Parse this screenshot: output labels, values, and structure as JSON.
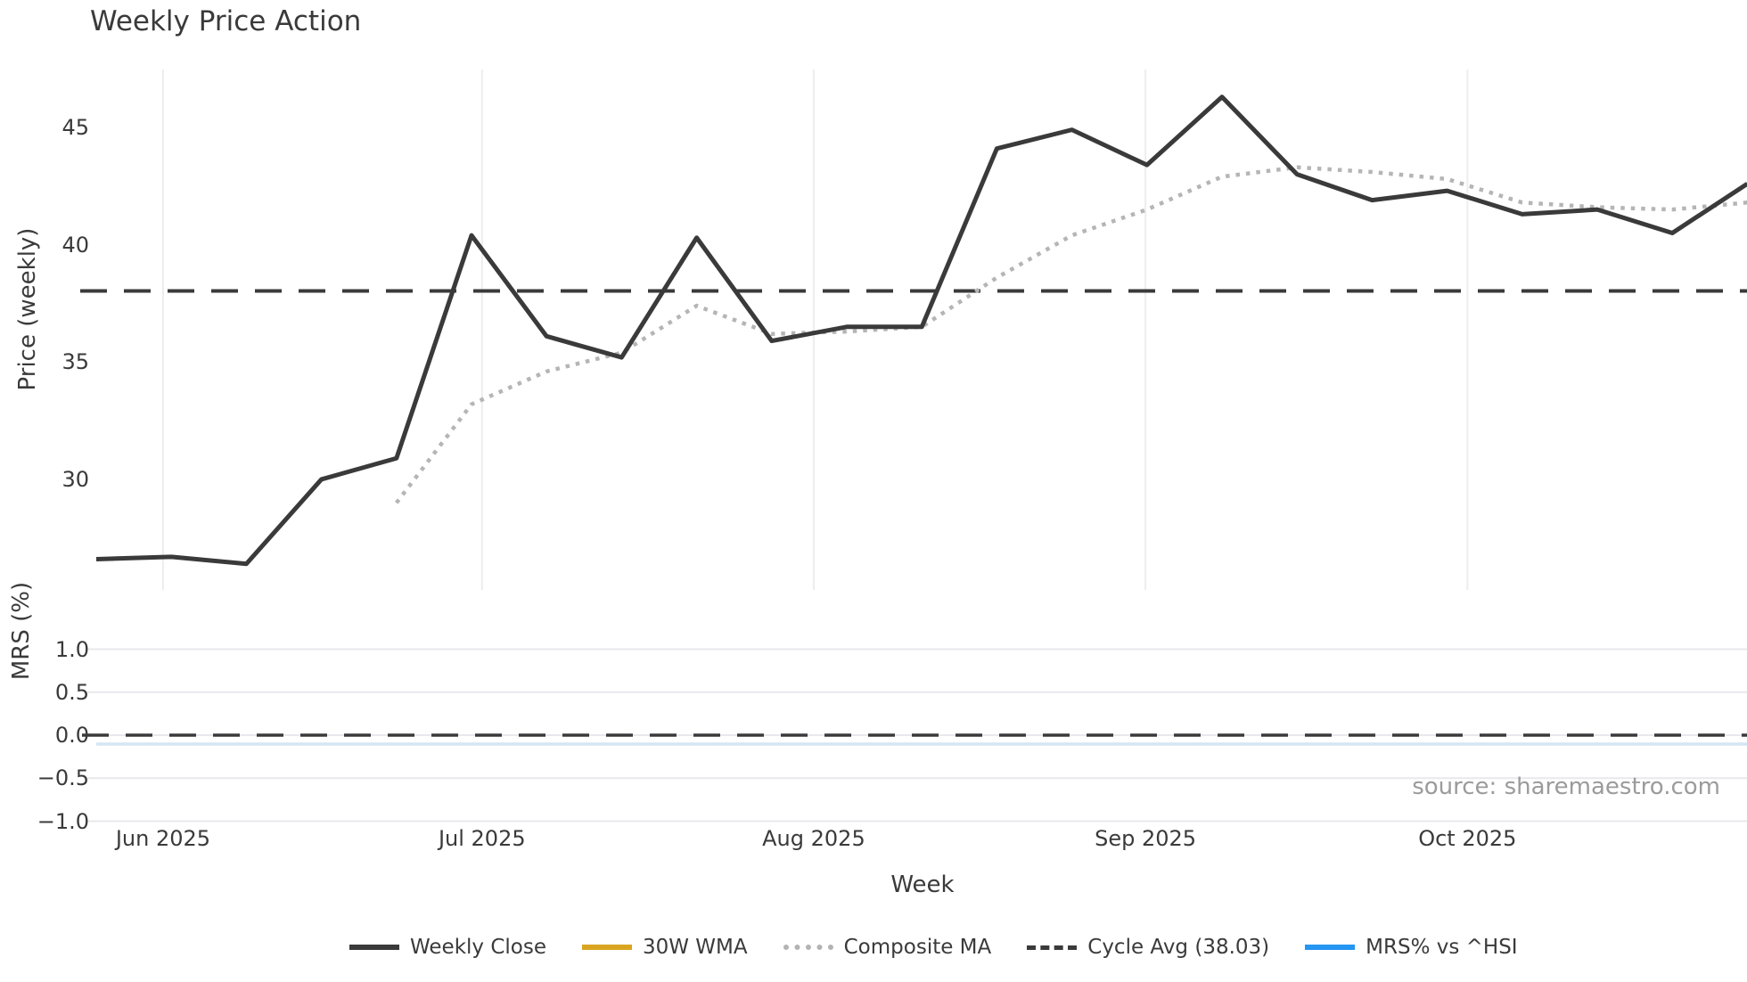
{
  "title": "Weekly Price Action",
  "source_note": "source: sharemaestro.com",
  "colors": {
    "weekly_close": "#3a3a3a",
    "wma_30w": "#d9a521",
    "composite_ma": "#b5b5b5",
    "cycle_avg": "#3a3a3a",
    "mrs_line": "#d6e5f4",
    "grid_vertical": "#ededf2",
    "grid_horizontal": "#e8e8ee",
    "source_text": "#9b9b9b"
  },
  "legend": {
    "items": [
      {
        "label": "Weekly Close",
        "style": "solid",
        "color": "#3a3a3a"
      },
      {
        "label": "30W WMA",
        "style": "solid",
        "color": "#d9a521"
      },
      {
        "label": "Composite MA",
        "style": "dotted",
        "color": "#b3b3b3"
      },
      {
        "label": "Cycle Avg (38.03)",
        "style": "dashed",
        "color": "#3a3a3a"
      },
      {
        "label": "MRS% vs ^HSI",
        "style": "solid",
        "color": "#2596f2"
      }
    ]
  },
  "chart_data": {
    "type": "line",
    "title": "Weekly Price Action",
    "xlabel": "Week",
    "x_ticks": [
      {
        "label": "Jun 2025",
        "week": 0.89
      },
      {
        "label": "Jul 2025",
        "week": 5.14
      },
      {
        "label": "Aug 2025",
        "week": 9.56
      },
      {
        "label": "Sep 2025",
        "week": 13.98
      },
      {
        "label": "Oct 2025",
        "week": 18.27
      }
    ],
    "panels": [
      {
        "name": "price",
        "ylabel": "Price (weekly)",
        "y_ticks": [
          {
            "label": "45",
            "value": 45
          },
          {
            "label": "40",
            "value": 40
          },
          {
            "label": "35",
            "value": 35
          },
          {
            "label": "30",
            "value": 30
          }
        ],
        "ylim": [
          25.9,
          47.4
        ],
        "series": [
          {
            "name": "Weekly Close",
            "start_week": 0,
            "values": [
              26.6,
              26.7,
              26.4,
              30.0,
              30.9,
              40.4,
              36.1,
              35.2,
              40.3,
              35.9,
              36.5,
              36.5,
              44.1,
              44.9,
              43.4,
              46.3,
              43.0,
              41.9,
              42.3,
              41.3,
              41.5,
              40.5,
              42.6
            ]
          },
          {
            "name": "Composite MA",
            "start_week": 4,
            "values": [
              29.0,
              33.2,
              34.6,
              35.4,
              37.4,
              36.2,
              36.3,
              36.5,
              38.6,
              40.4,
              41.5,
              42.9,
              43.3,
              43.1,
              42.8,
              41.8,
              41.6,
              41.5,
              41.8
            ]
          },
          {
            "name": "Cycle Avg",
            "constant": 38.03
          }
        ]
      },
      {
        "name": "mrs",
        "ylabel": "MRS (%)",
        "y_ticks": [
          {
            "label": "1.0",
            "value": 1.0
          },
          {
            "label": "0.5",
            "value": 0.5
          },
          {
            "label": "0.0",
            "value": 0.0
          },
          {
            "label": "−0.5",
            "value": -0.5
          },
          {
            "label": "−1.0",
            "value": -1.0
          }
        ],
        "ylim": [
          -1.2,
          1.2
        ],
        "series": [
          {
            "name": "MRS% vs ^HSI",
            "start_week": 0,
            "values": [
              0,
              0,
              0,
              0,
              0,
              0,
              0,
              0,
              0,
              0,
              0,
              0,
              0,
              0,
              0,
              0,
              0,
              0,
              0,
              0,
              0,
              0,
              0
            ]
          },
          {
            "name": "Zero Line",
            "constant": 0.0
          }
        ]
      }
    ]
  }
}
